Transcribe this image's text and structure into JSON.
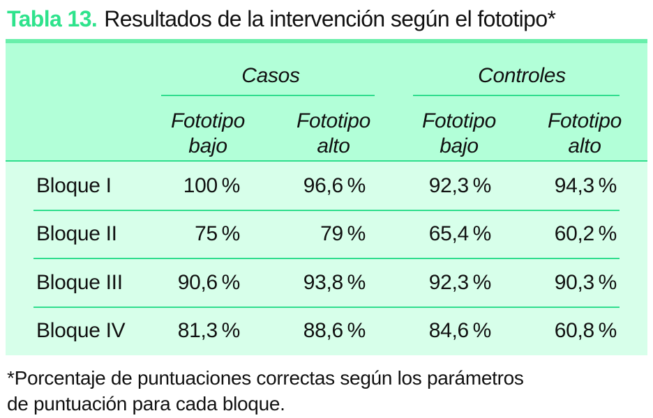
{
  "title": {
    "label": "Tabla 13.",
    "text": "Resultados de la intervención según el fototipo*"
  },
  "table": {
    "groups": [
      {
        "label": "Casos"
      },
      {
        "label": "Controles"
      }
    ],
    "columns": [
      {
        "line1": "Fototipo",
        "line2": "bajo"
      },
      {
        "line1": "Fototipo",
        "line2": "alto"
      },
      {
        "line1": "Fototipo",
        "line2": "bajo"
      },
      {
        "line1": "Fototipo",
        "line2": "alto"
      }
    ],
    "rows": [
      {
        "label": "Bloque I",
        "values": [
          "100 %",
          "96,6 %",
          "92,3 %",
          "94,3 %"
        ]
      },
      {
        "label": "Bloque II",
        "values": [
          "75 %",
          "79 %",
          "65,4 %",
          "60,2 %"
        ]
      },
      {
        "label": "Bloque III",
        "values": [
          "90,6 %",
          "93,8 %",
          "92,3 %",
          "90,3 %"
        ]
      },
      {
        "label": "Bloque IV",
        "values": [
          "81,3 %",
          "88,6 %",
          "84,6 %",
          "60,8 %"
        ]
      }
    ]
  },
  "footnote": {
    "line1": "*Porcentaje de puntuaciones correctas según los parámetros",
    "line2": "de puntuación para cada bloque."
  },
  "colors": {
    "accent": "#2EE38C",
    "band": "#69EFAB",
    "header-bg": "#B2FFD8",
    "body-bg": "#D7FFEA",
    "line": "#2FDD8D",
    "text": "#111111"
  }
}
